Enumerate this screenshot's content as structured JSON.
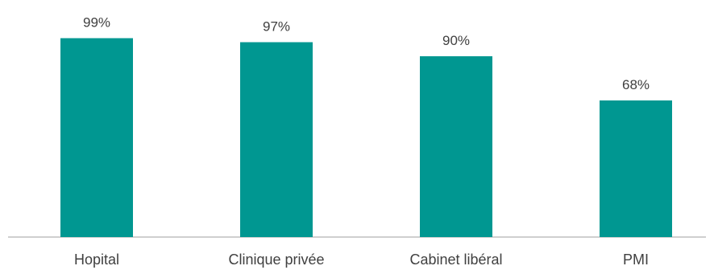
{
  "chart_data": {
    "type": "bar",
    "categories": [
      "Hopital",
      "Clinique privée",
      "Cabinet libéral",
      "PMI"
    ],
    "values": [
      99,
      97,
      90,
      68
    ],
    "value_labels": [
      "99%",
      "97%",
      "90%",
      "68%"
    ],
    "ylim": [
      0,
      100
    ],
    "grid": false,
    "legend": "none",
    "colors": {
      "bar": "#009791",
      "axis": "#bfbfbf",
      "text": "#404040"
    }
  }
}
